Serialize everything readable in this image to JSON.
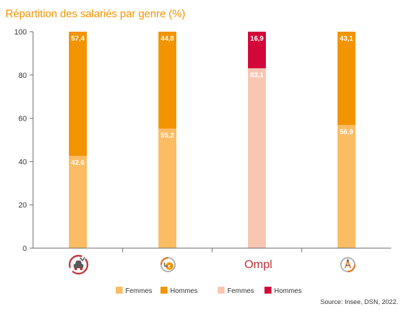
{
  "title": "Répartition des salariés par genre (%)",
  "source": "Source: Insee, DSN, 2022.",
  "colors": {
    "femmes_orange": "#fbbc63",
    "hommes_orange": "#f29400",
    "femmes_pink": "#f9c6b2",
    "hommes_red": "#d2073a",
    "title": "#f29400",
    "axis": "#666666"
  },
  "chart_data": {
    "type": "bar",
    "stacked": true,
    "categories": [
      "car-icon",
      "clock-coin-icon",
      "Ompl",
      "tools-icon"
    ],
    "category_labels": [
      "",
      "",
      "Ompl",
      ""
    ],
    "series": [
      {
        "name": "Femmes",
        "values": [
          42.6,
          55.2,
          83.1,
          56.9
        ],
        "value_labels": [
          "42,6",
          "55,2",
          "83,1",
          "56,9"
        ],
        "colors": [
          "#fbbc63",
          "#fbbc63",
          "#f9c6b2",
          "#fbbc63"
        ]
      },
      {
        "name": "Hommes",
        "values": [
          57.4,
          44.8,
          16.9,
          43.1
        ],
        "value_labels": [
          "57,4",
          "44,8",
          "16,9",
          "43,1"
        ],
        "colors": [
          "#f29400",
          "#f29400",
          "#d2073a",
          "#f29400"
        ]
      }
    ],
    "ylim": [
      0,
      100
    ],
    "yticks": [
      "0",
      "20",
      "40",
      "60",
      "80",
      "100"
    ],
    "grid": false,
    "legend": [
      {
        "label": "Femmes",
        "color": "#fbbc63"
      },
      {
        "label": "Hommes",
        "color": "#f29400"
      },
      {
        "label": "Femmes",
        "color": "#f9c6b2"
      },
      {
        "label": "Hommes",
        "color": "#d2073a"
      }
    ],
    "legend_position": "bottom"
  }
}
